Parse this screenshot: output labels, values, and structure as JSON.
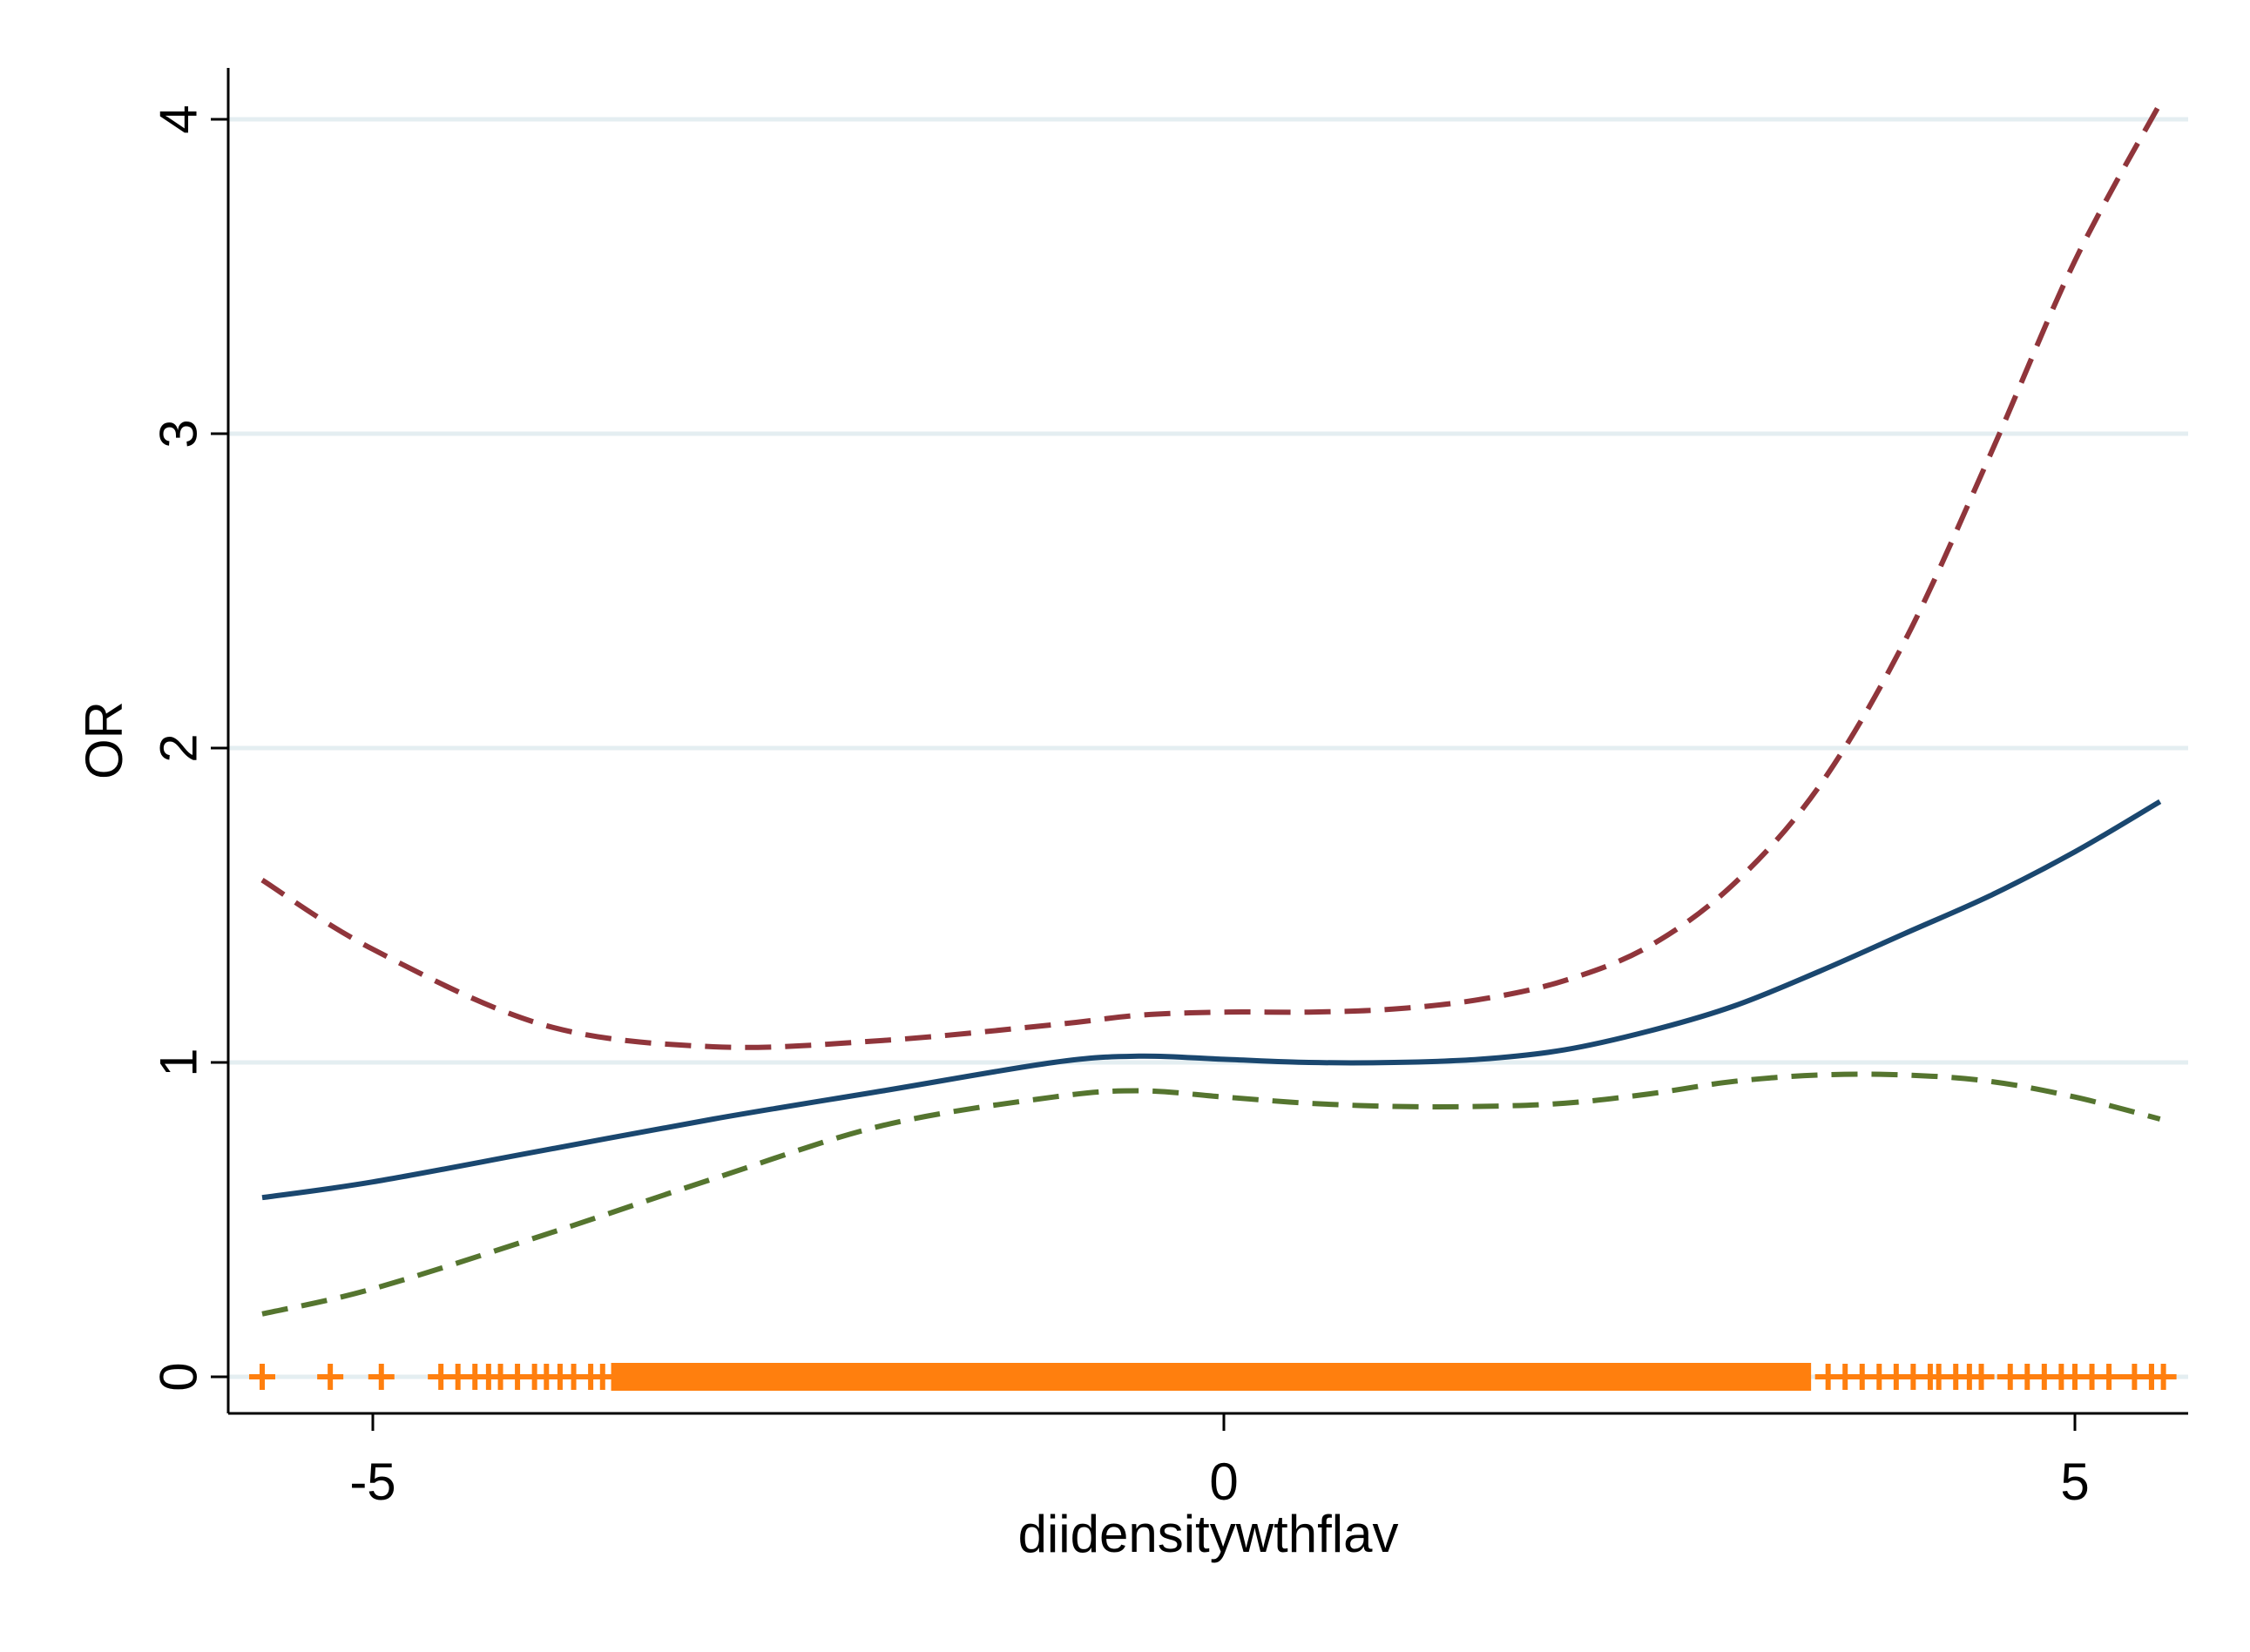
{
  "chart_data": {
    "type": "line",
    "title": "",
    "xlabel": "diidensitywthflav",
    "ylabel": "OR",
    "xlim": [
      -5.9,
      5.7
    ],
    "ylim": [
      -0.12,
      4.2
    ],
    "x_ticks": [
      -5,
      0,
      5
    ],
    "x_tick_labels": [
      "-5",
      "0",
      "5"
    ],
    "y_ticks": [
      0,
      1,
      2,
      3,
      4
    ],
    "y_tick_labels": [
      "0",
      "1",
      "2",
      "3",
      "4"
    ],
    "grid": "horizontal",
    "legend": "none",
    "series": [
      {
        "style": "solid",
        "color": "#1a476f",
        "x": [
          -5.65,
          -5.0,
          -4.0,
          -3.0,
          -2.0,
          -1.0,
          -0.5,
          0.0,
          0.5,
          1.0,
          1.5,
          2.0,
          2.5,
          3.0,
          3.5,
          4.0,
          4.5,
          5.0,
          5.5
        ],
        "y": [
          0.57,
          0.62,
          0.72,
          0.82,
          0.91,
          1.0,
          1.02,
          1.01,
          1.0,
          1.0,
          1.01,
          1.04,
          1.1,
          1.18,
          1.29,
          1.41,
          1.53,
          1.67,
          1.83
        ]
      },
      {
        "style": "dashed",
        "color": "#90353b",
        "x": [
          -5.65,
          -5.0,
          -4.0,
          -3.0,
          -2.0,
          -1.0,
          -0.5,
          0.0,
          0.5,
          1.0,
          1.5,
          2.0,
          2.5,
          3.0,
          3.5,
          4.0,
          4.5,
          5.0,
          5.5
        ],
        "y": [
          1.58,
          1.36,
          1.12,
          1.05,
          1.07,
          1.12,
          1.15,
          1.16,
          1.16,
          1.17,
          1.2,
          1.26,
          1.37,
          1.57,
          1.88,
          2.34,
          2.93,
          3.55,
          4.05
        ]
      },
      {
        "style": "dashed",
        "color": "#55752f",
        "x": [
          -5.65,
          -5.0,
          -4.0,
          -3.0,
          -2.0,
          -1.0,
          -0.5,
          0.0,
          0.5,
          1.0,
          1.5,
          2.0,
          2.5,
          3.0,
          3.5,
          4.0,
          4.5,
          5.0,
          5.5
        ],
        "y": [
          0.2,
          0.28,
          0.45,
          0.63,
          0.8,
          0.89,
          0.91,
          0.89,
          0.87,
          0.86,
          0.86,
          0.87,
          0.9,
          0.94,
          0.96,
          0.96,
          0.94,
          0.89,
          0.82
        ]
      }
    ],
    "rug": {
      "color": "#ff7f0e",
      "marker": "+",
      "y": 0,
      "x": [
        -5.65,
        -5.25,
        -4.95,
        -4.6,
        -4.5,
        -4.4,
        -4.32,
        -4.25,
        -4.15,
        -4.05,
        -3.98,
        -3.9,
        -3.82,
        -3.72,
        -3.65,
        5.45
      ]
    },
    "rug_band": {
      "color": "#ff7f0e",
      "x": [
        -3.6,
        3.45
      ]
    },
    "rug_right": {
      "color": "#ff7f0e",
      "x": [
        3.55,
        3.65,
        3.75,
        3.85,
        3.95,
        4.05,
        4.15,
        4.2,
        4.3,
        4.38,
        4.45,
        4.62,
        4.72,
        4.82,
        4.92,
        5.0,
        5.1,
        5.2,
        5.35,
        5.45,
        5.52
      ]
    }
  }
}
